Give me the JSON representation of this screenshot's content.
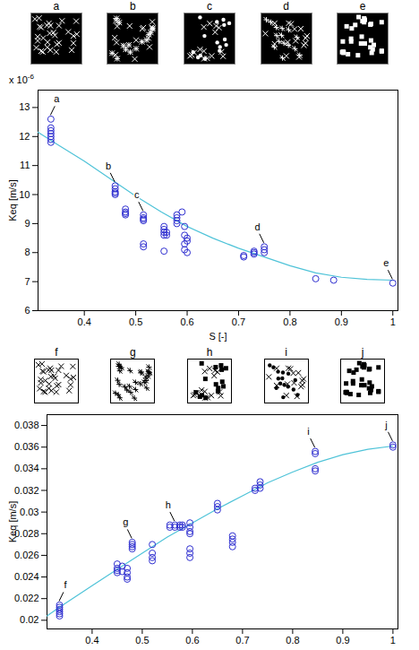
{
  "chart_data": [
    {
      "type": "scatter",
      "x_label": "S [-]",
      "y_label": "Keq [m/s]",
      "y_multiplier": {
        "base": "x 10",
        "exponent": "-6"
      },
      "panels": [
        "a",
        "b",
        "c",
        "d",
        "e"
      ],
      "xlim": [
        0.31,
        1.01
      ],
      "xticks": [
        0.4,
        0.5,
        0.6,
        0.7,
        0.8,
        0.9,
        1
      ],
      "ylim": [
        6,
        13.6
      ],
      "yticks": [
        6,
        7,
        8,
        9,
        10,
        11,
        12,
        13
      ],
      "color": "#2f2fd0",
      "marker": "circle",
      "x": [
        0.335,
        0.335,
        0.335,
        0.335,
        0.335,
        0.335,
        0.335,
        0.46,
        0.46,
        0.46,
        0.46,
        0.46,
        0.48,
        0.48,
        0.48,
        0.48,
        0.515,
        0.515,
        0.515,
        0.515,
        0.515,
        0.515,
        0.555,
        0.555,
        0.555,
        0.555,
        0.555,
        0.56,
        0.56,
        0.58,
        0.58,
        0.58,
        0.58,
        0.59,
        0.595,
        0.595,
        0.595,
        0.595,
        0.6,
        0.6,
        0.6,
        0.71,
        0.71,
        0.73,
        0.73,
        0.73,
        0.75,
        0.75,
        0.75,
        0.85,
        0.885,
        1.0
      ],
      "values": [
        12.6,
        12.3,
        12.2,
        12.1,
        12.0,
        11.9,
        11.8,
        10.3,
        10.2,
        10.1,
        10.05,
        10.0,
        9.5,
        9.4,
        9.35,
        9.3,
        9.3,
        9.2,
        9.15,
        9.1,
        8.3,
        8.2,
        8.9,
        8.8,
        8.7,
        8.6,
        8.05,
        8.7,
        8.6,
        9.3,
        9.2,
        9.1,
        9.0,
        9.4,
        8.9,
        8.6,
        8.3,
        8.1,
        8.5,
        8.4,
        8.0,
        7.9,
        7.85,
        8.05,
        8.0,
        7.95,
        8.2,
        8.1,
        8.0,
        7.1,
        7.05,
        6.95
      ],
      "fit": {
        "type": "line",
        "color": "#4fc3d8",
        "x": [
          0.31,
          0.35,
          0.4,
          0.45,
          0.5,
          0.55,
          0.6,
          0.65,
          0.7,
          0.75,
          0.8,
          0.85,
          0.9,
          0.95,
          1.0
        ],
        "values": [
          12.15,
          11.7,
          11.15,
          10.55,
          9.95,
          9.4,
          8.9,
          8.5,
          8.15,
          7.85,
          7.55,
          7.3,
          7.15,
          7.08,
          7.05
        ]
      },
      "annotations": [
        {
          "text": "a",
          "x": 0.335,
          "y": 12.6
        },
        {
          "text": "b",
          "x": 0.46,
          "y": 10.3
        },
        {
          "text": "c",
          "x": 0.515,
          "y": 9.3
        },
        {
          "text": "d",
          "x": 0.75,
          "y": 8.2
        },
        {
          "text": "e",
          "x": 1.0,
          "y": 6.95
        }
      ]
    },
    {
      "type": "scatter",
      "y_label": "Keq [m/s]",
      "panels": [
        "f",
        "g",
        "h",
        "i",
        "j"
      ],
      "xlim": [
        0.31,
        1.01
      ],
      "xticks": [
        0.4,
        0.5,
        0.6,
        0.7,
        0.8,
        0.9,
        1
      ],
      "ylim": [
        0.0192,
        0.039
      ],
      "yticks": [
        0.02,
        0.022,
        0.024,
        0.026,
        0.028,
        0.03,
        0.032,
        0.034,
        0.036,
        0.038
      ],
      "color": "#2f2fd0",
      "marker": "circle",
      "x": [
        0.335,
        0.335,
        0.335,
        0.335,
        0.335,
        0.335,
        0.45,
        0.45,
        0.45,
        0.45,
        0.46,
        0.46,
        0.47,
        0.47,
        0.47,
        0.47,
        0.48,
        0.48,
        0.48,
        0.48,
        0.52,
        0.52,
        0.52,
        0.52,
        0.555,
        0.555,
        0.565,
        0.565,
        0.575,
        0.575,
        0.58,
        0.58,
        0.595,
        0.595,
        0.595,
        0.595,
        0.595,
        0.595,
        0.595,
        0.65,
        0.65,
        0.65,
        0.68,
        0.68,
        0.68,
        0.68,
        0.725,
        0.725,
        0.735,
        0.735,
        0.735,
        0.845,
        0.845,
        0.845,
        0.845,
        1.0,
        1.0
      ],
      "values": [
        0.0214,
        0.0212,
        0.021,
        0.0208,
        0.0206,
        0.0204,
        0.0252,
        0.0248,
        0.0246,
        0.0244,
        0.025,
        0.0245,
        0.0248,
        0.0244,
        0.024,
        0.0238,
        0.0272,
        0.027,
        0.0268,
        0.0266,
        0.027,
        0.0262,
        0.0258,
        0.0255,
        0.0288,
        0.0286,
        0.0288,
        0.0286,
        0.0288,
        0.0286,
        0.0288,
        0.0286,
        0.029,
        0.0286,
        0.0282,
        0.028,
        0.0266,
        0.0262,
        0.0258,
        0.0308,
        0.0305,
        0.0302,
        0.0278,
        0.0275,
        0.0272,
        0.0268,
        0.0322,
        0.032,
        0.0328,
        0.0325,
        0.0322,
        0.0356,
        0.0354,
        0.034,
        0.0338,
        0.0362,
        0.036
      ],
      "fit": {
        "type": "line",
        "color": "#4fc3d8",
        "x": [
          0.31,
          0.335,
          0.4,
          0.45,
          0.5,
          0.55,
          0.6,
          0.65,
          0.7,
          0.75,
          0.8,
          0.85,
          0.9,
          0.95,
          1.0
        ],
        "values": [
          0.0204,
          0.0212,
          0.0232,
          0.0247,
          0.0262,
          0.0277,
          0.029,
          0.0303,
          0.0315,
          0.0327,
          0.0337,
          0.0346,
          0.0353,
          0.0358,
          0.0361
        ]
      },
      "annotations": [
        {
          "text": "f",
          "x": 0.335,
          "y": 0.0214
        },
        {
          "text": "g",
          "x": 0.48,
          "y": 0.0272
        },
        {
          "text": "h",
          "x": 0.565,
          "y": 0.0288
        },
        {
          "text": "i",
          "x": 0.845,
          "y": 0.0356
        },
        {
          "text": "j",
          "x": 1.0,
          "y": 0.0362
        }
      ]
    }
  ]
}
